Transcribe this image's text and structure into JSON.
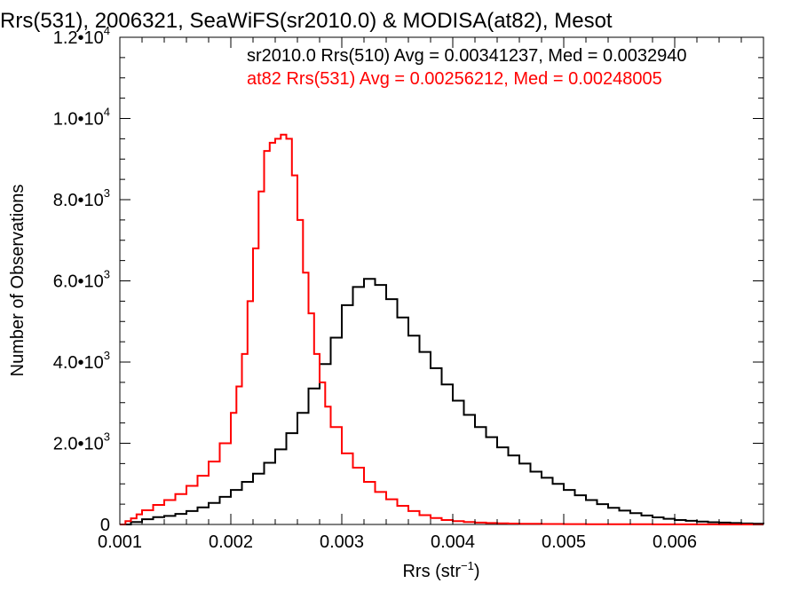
{
  "chart_data": {
    "type": "line",
    "title": "Rrs(531), 2006321, SeaWiFS(sr2010.0) & MODISA(at82), Mesot",
    "xlabel": "Rrs (str",
    "xlabel_sup": "−1",
    "xlabel_close": ")",
    "ylabel": "Number of Observations",
    "xlim": [
      0.001,
      0.0068
    ],
    "ylim": [
      0,
      12000
    ],
    "x_ticks": [
      0.001,
      0.002,
      0.003,
      0.004,
      0.005,
      0.006
    ],
    "x_tick_labels": [
      "0.001",
      "0.002",
      "0.003",
      "0.004",
      "0.005",
      "0.006"
    ],
    "y_ticks": [
      0,
      2000,
      4000,
      6000,
      8000,
      10000,
      12000
    ],
    "y_tick_labels": [
      {
        "mant": "0",
        "exp": ""
      },
      {
        "mant": "2.0•10",
        "exp": "3"
      },
      {
        "mant": "4.0•10",
        "exp": "3"
      },
      {
        "mant": "6.0•10",
        "exp": "3"
      },
      {
        "mant": "8.0•10",
        "exp": "3"
      },
      {
        "mant": "1.0•10",
        "exp": "4"
      },
      {
        "mant": "1.2•10",
        "exp": "4"
      }
    ],
    "annotations": [
      {
        "text": "sr2010.0 Rrs(510) Avg = 0.00341237, Med = 0.0032940",
        "color": "#000000"
      },
      {
        "text": "at82 Rrs(531) Avg = 0.00256212, Med = 0.00248005",
        "color": "#ff0000"
      }
    ],
    "series": [
      {
        "color": "#000000",
        "style": "step",
        "x": [
          0.001,
          0.0011,
          0.0012,
          0.0013,
          0.0014,
          0.0015,
          0.0016,
          0.0017,
          0.0018,
          0.0019,
          0.002,
          0.0021,
          0.0022,
          0.0023,
          0.0024,
          0.0025,
          0.0026,
          0.0027,
          0.0028,
          0.0029,
          0.003,
          0.0031,
          0.0032,
          0.0033,
          0.0034,
          0.0035,
          0.0036,
          0.0037,
          0.0038,
          0.0039,
          0.004,
          0.0041,
          0.0042,
          0.0043,
          0.0044,
          0.0045,
          0.0046,
          0.0047,
          0.0048,
          0.0049,
          0.005,
          0.0051,
          0.0052,
          0.0053,
          0.0054,
          0.0055,
          0.0056,
          0.0057,
          0.0058,
          0.0059,
          0.006,
          0.0061,
          0.0062,
          0.0063,
          0.0064,
          0.0065,
          0.0066,
          0.0067,
          0.0068
        ],
        "values": [
          0,
          60,
          130,
          180,
          210,
          260,
          330,
          420,
          530,
          680,
          850,
          1050,
          1250,
          1520,
          1850,
          2250,
          2750,
          3350,
          3950,
          4600,
          5400,
          5850,
          6050,
          5900,
          5550,
          5100,
          4650,
          4250,
          3850,
          3450,
          3050,
          2700,
          2400,
          2150,
          1900,
          1700,
          1500,
          1300,
          1150,
          1000,
          850,
          720,
          600,
          500,
          410,
          340,
          280,
          220,
          175,
          140,
          110,
          90,
          70,
          55,
          45,
          35,
          25,
          20,
          15
        ]
      },
      {
        "color": "#ff0000",
        "style": "step",
        "x": [
          0.001,
          0.00105,
          0.0011,
          0.00115,
          0.0012,
          0.0013,
          0.0014,
          0.0015,
          0.0016,
          0.0017,
          0.0018,
          0.0019,
          0.002,
          0.00205,
          0.0021,
          0.00215,
          0.0022,
          0.00225,
          0.0023,
          0.00235,
          0.0024,
          0.00245,
          0.0025,
          0.00255,
          0.0026,
          0.00265,
          0.0027,
          0.00275,
          0.0028,
          0.00285,
          0.0029,
          0.003,
          0.0031,
          0.0032,
          0.0033,
          0.0034,
          0.0035,
          0.0036,
          0.0037,
          0.0038,
          0.0039,
          0.004,
          0.0041,
          0.0042,
          0.0043,
          0.0044,
          0.0045,
          0.0046,
          0.0047,
          0.0048,
          0.0049,
          0.005,
          0.0052,
          0.0054,
          0.0056,
          0.0058,
          0.006,
          0.0064,
          0.0068
        ],
        "values": [
          0,
          80,
          150,
          250,
          350,
          480,
          600,
          750,
          950,
          1200,
          1550,
          2000,
          2750,
          3400,
          4200,
          5500,
          6800,
          8200,
          9200,
          9400,
          9500,
          9600,
          9500,
          8600,
          7500,
          6200,
          5200,
          4200,
          3500,
          2900,
          2400,
          1750,
          1400,
          1050,
          800,
          620,
          460,
          330,
          230,
          160,
          110,
          80,
          60,
          45,
          35,
          28,
          22,
          18,
          15,
          12,
          10,
          8,
          6,
          5,
          4,
          3,
          2,
          1,
          0
        ]
      }
    ]
  }
}
